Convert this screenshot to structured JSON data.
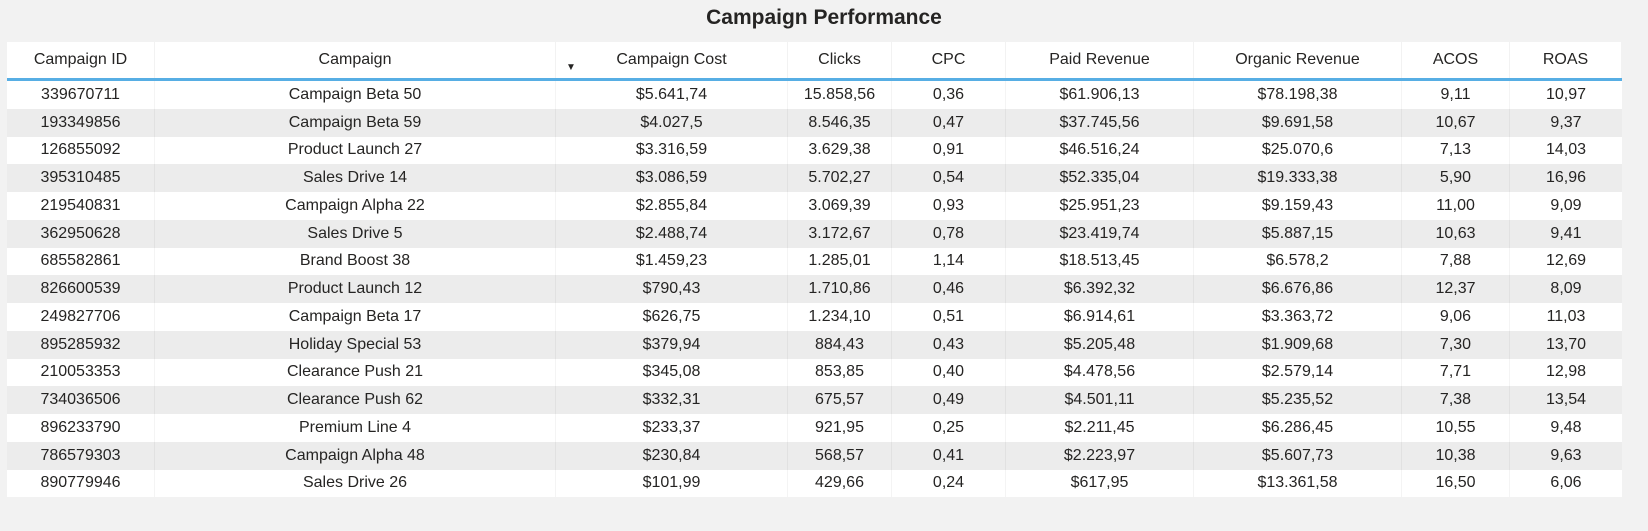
{
  "chart_data": {
    "type": "table",
    "title": "Campaign Performance",
    "sort_indicator_glyph": "▼",
    "columns": [
      {
        "key": "campaign-id",
        "label": "Campaign ID"
      },
      {
        "key": "campaign",
        "label": "Campaign"
      },
      {
        "key": "campaign-cost",
        "label": "Campaign Cost"
      },
      {
        "key": "clicks",
        "label": "Clicks"
      },
      {
        "key": "cpc",
        "label": "CPC"
      },
      {
        "key": "paid-revenue",
        "label": "Paid Revenue"
      },
      {
        "key": "organic-revenue",
        "label": "Organic Revenue"
      },
      {
        "key": "acos",
        "label": "ACOS"
      },
      {
        "key": "roas",
        "label": "ROAS"
      }
    ],
    "rows": [
      [
        "339670711",
        "Campaign Beta 50",
        "$5.641,74",
        "15.858,56",
        "0,36",
        "$61.906,13",
        "$78.198,38",
        "9,11",
        "10,97"
      ],
      [
        "193349856",
        "Campaign Beta 59",
        "$4.027,5",
        "8.546,35",
        "0,47",
        "$37.745,56",
        "$9.691,58",
        "10,67",
        "9,37"
      ],
      [
        "126855092",
        "Product Launch 27",
        "$3.316,59",
        "3.629,38",
        "0,91",
        "$46.516,24",
        "$25.070,6",
        "7,13",
        "14,03"
      ],
      [
        "395310485",
        "Sales Drive 14",
        "$3.086,59",
        "5.702,27",
        "0,54",
        "$52.335,04",
        "$19.333,38",
        "5,90",
        "16,96"
      ],
      [
        "219540831",
        "Campaign Alpha 22",
        "$2.855,84",
        "3.069,39",
        "0,93",
        "$25.951,23",
        "$9.159,43",
        "11,00",
        "9,09"
      ],
      [
        "362950628",
        "Sales Drive 5",
        "$2.488,74",
        "3.172,67",
        "0,78",
        "$23.419,74",
        "$5.887,15",
        "10,63",
        "9,41"
      ],
      [
        "685582861",
        "Brand Boost 38",
        "$1.459,23",
        "1.285,01",
        "1,14",
        "$18.513,45",
        "$6.578,2",
        "7,88",
        "12,69"
      ],
      [
        "826600539",
        "Product Launch 12",
        "$790,43",
        "1.710,86",
        "0,46",
        "$6.392,32",
        "$6.676,86",
        "12,37",
        "8,09"
      ],
      [
        "249827706",
        "Campaign Beta 17",
        "$626,75",
        "1.234,10",
        "0,51",
        "$6.914,61",
        "$3.363,72",
        "9,06",
        "11,03"
      ],
      [
        "895285932",
        "Holiday Special 53",
        "$379,94",
        "884,43",
        "0,43",
        "$5.205,48",
        "$1.909,68",
        "7,30",
        "13,70"
      ],
      [
        "210053353",
        "Clearance Push 21",
        "$345,08",
        "853,85",
        "0,40",
        "$4.478,56",
        "$2.579,14",
        "7,71",
        "12,98"
      ],
      [
        "734036506",
        "Clearance Push 62",
        "$332,31",
        "675,57",
        "0,49",
        "$4.501,11",
        "$5.235,52",
        "7,38",
        "13,54"
      ],
      [
        "896233790",
        "Premium Line 4",
        "$233,37",
        "921,95",
        "0,25",
        "$2.211,45",
        "$6.286,45",
        "10,55",
        "9,48"
      ],
      [
        "786579303",
        "Campaign Alpha 48",
        "$230,84",
        "568,57",
        "0,41",
        "$2.223,97",
        "$5.607,73",
        "10,38",
        "9,63"
      ],
      [
        "890779946",
        "Sales Drive 26",
        "$101,99",
        "429,66",
        "0,24",
        "$617,95",
        "$13.361,58",
        "16,50",
        "6,06"
      ]
    ]
  },
  "colors": {
    "accent": "#57AEE4",
    "alt_row": "#ECECEC",
    "page_background": "#F2F2F2",
    "table_background": "#FFFFFF",
    "text": "#252423"
  }
}
